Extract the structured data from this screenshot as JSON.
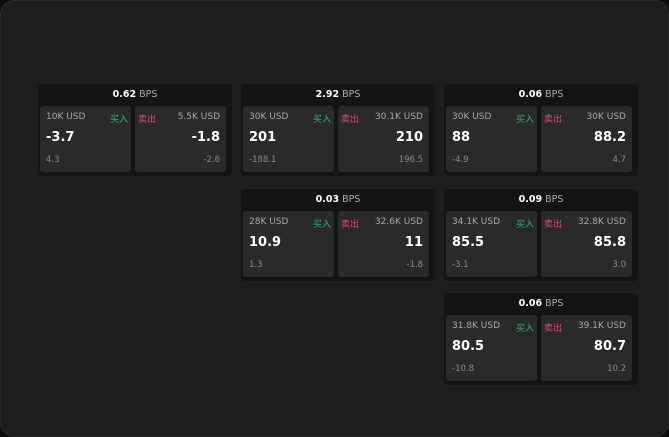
{
  "unit": "BPS",
  "buy_label": "买入",
  "sell_label": "卖出",
  "colors": {
    "buy": "#2fb86a",
    "sell": "#e0457b",
    "background": "#1e1e1e",
    "panel": "#2a2a2a"
  },
  "cards": [
    {
      "spread": "0.62",
      "buy": {
        "amount": "10K USD",
        "price": "-3.7",
        "change": "4.3"
      },
      "sell": {
        "amount": "5.5K USD",
        "price": "-1.8",
        "change": "-2.6"
      }
    },
    {
      "spread": "2.92",
      "buy": {
        "amount": "30K USD",
        "price": "201",
        "change": "-188.1"
      },
      "sell": {
        "amount": "30.1K USD",
        "price": "210",
        "change": "196.5"
      }
    },
    {
      "spread": "0.06",
      "buy": {
        "amount": "30K USD",
        "price": "88",
        "change": "-4.9"
      },
      "sell": {
        "amount": "30K USD",
        "price": "88.2",
        "change": "4.7"
      }
    },
    {
      "spread": "0.03",
      "buy": {
        "amount": "28K USD",
        "price": "10.9",
        "change": "1.3"
      },
      "sell": {
        "amount": "32.6K USD",
        "price": "11",
        "change": "-1.8"
      }
    },
    {
      "spread": "0.09",
      "buy": {
        "amount": "34.1K USD",
        "price": "85.5",
        "change": "-3.1"
      },
      "sell": {
        "amount": "32.8K USD",
        "price": "85.8",
        "change": "3.0"
      }
    },
    {
      "spread": "0.06",
      "buy": {
        "amount": "31.8K USD",
        "price": "80.5",
        "change": "-10.8"
      },
      "sell": {
        "amount": "39.1K USD",
        "price": "80.7",
        "change": "10.2"
      }
    }
  ]
}
